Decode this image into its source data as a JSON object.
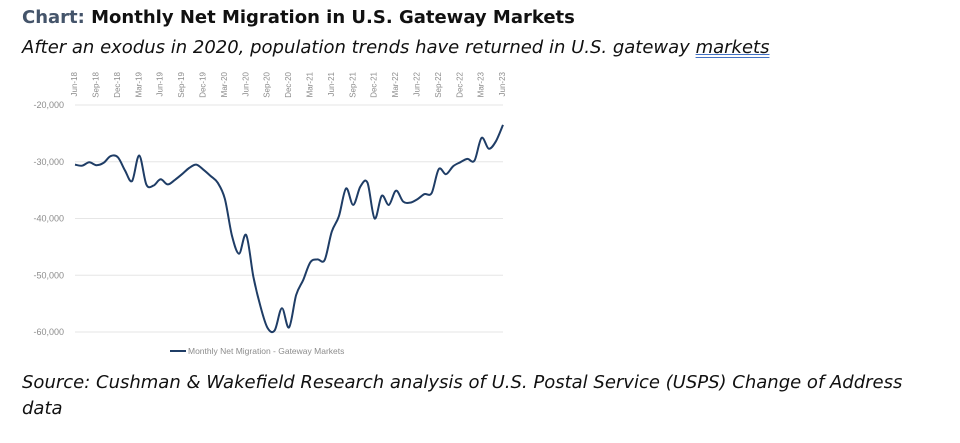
{
  "header": {
    "prefix": "Chart:",
    "title": "Monthly Net Migration in U.S. Gateway Markets",
    "subtitle_main": "After an exodus in 2020, population trends have returned in U.S. gateway ",
    "subtitle_end": "markets"
  },
  "source": {
    "line1": "Source: Cushman & Wakefield Research analysis of U.S. Postal Service (USPS) Change of Address",
    "line2": "data"
  },
  "colors": {
    "series": "#1f3d66",
    "grid": "#e6e6e6",
    "tick": "#8c8c8c"
  },
  "chart_data": {
    "type": "line",
    "title": "",
    "xlabel": "",
    "ylabel": "",
    "ylim": [
      -60000,
      -20000
    ],
    "y_ticks": [
      -20000,
      -30000,
      -40000,
      -50000,
      -60000
    ],
    "y_tick_labels": [
      "-20,000",
      "-30,000",
      "-40,000",
      "-50,000",
      "-60,000"
    ],
    "x_ticks": [
      "Jun-18",
      "Sep-18",
      "Dec-18",
      "Mar-19",
      "Jun-19",
      "Sep-19",
      "Dec-19",
      "Mar-20",
      "Jun-20",
      "Sep-20",
      "Dec-20",
      "Mar-21",
      "Jun-21",
      "Sep-21",
      "Dec-21",
      "Mar-22",
      "Jun-22",
      "Sep-22",
      "Dec-22",
      "Mar-23",
      "Jun-23"
    ],
    "grid": true,
    "legend": "bottom",
    "x": [
      "Jun-18",
      "Jul-18",
      "Aug-18",
      "Sep-18",
      "Oct-18",
      "Nov-18",
      "Dec-18",
      "Jan-19",
      "Feb-19",
      "Mar-19",
      "Apr-19",
      "May-19",
      "Jun-19",
      "Jul-19",
      "Aug-19",
      "Sep-19",
      "Oct-19",
      "Nov-19",
      "Dec-19",
      "Jan-20",
      "Feb-20",
      "Mar-20",
      "Apr-20",
      "May-20",
      "Jun-20",
      "Jul-20",
      "Aug-20",
      "Sep-20",
      "Oct-20",
      "Nov-20",
      "Dec-20",
      "Jan-21",
      "Feb-21",
      "Mar-21",
      "Apr-21",
      "May-21",
      "Jun-21",
      "Jul-21",
      "Aug-21",
      "Sep-21",
      "Oct-21",
      "Nov-21",
      "Dec-21",
      "Jan-22",
      "Feb-22",
      "Mar-22",
      "Apr-22",
      "May-22",
      "Jun-22",
      "Jul-22",
      "Aug-22",
      "Sep-22",
      "Oct-22",
      "Nov-22",
      "Dec-22",
      "Jan-23",
      "Feb-23",
      "Mar-23",
      "Apr-23",
      "May-23",
      "Jun-23"
    ],
    "series": [
      {
        "name": "Monthly Net Migration - Gateway Markets",
        "values": [
          -30500,
          -30700,
          -30100,
          -30600,
          -30200,
          -29000,
          -29200,
          -31500,
          -33400,
          -28900,
          -34000,
          -34200,
          -33100,
          -34000,
          -33200,
          -32200,
          -31100,
          -30500,
          -31400,
          -32500,
          -33700,
          -36500,
          -43000,
          -46200,
          -42900,
          -50200,
          -55500,
          -59300,
          -59700,
          -55800,
          -59200,
          -53500,
          -50800,
          -47700,
          -47200,
          -47300,
          -42300,
          -39600,
          -34700,
          -37600,
          -34400,
          -33700,
          -40000,
          -36000,
          -37600,
          -35100,
          -37000,
          -37200,
          -36600,
          -35700,
          -35500,
          -31300,
          -32200,
          -30800,
          -30100,
          -29500,
          -29800,
          -25800,
          -27700,
          -26400,
          -23500
        ]
      }
    ]
  }
}
